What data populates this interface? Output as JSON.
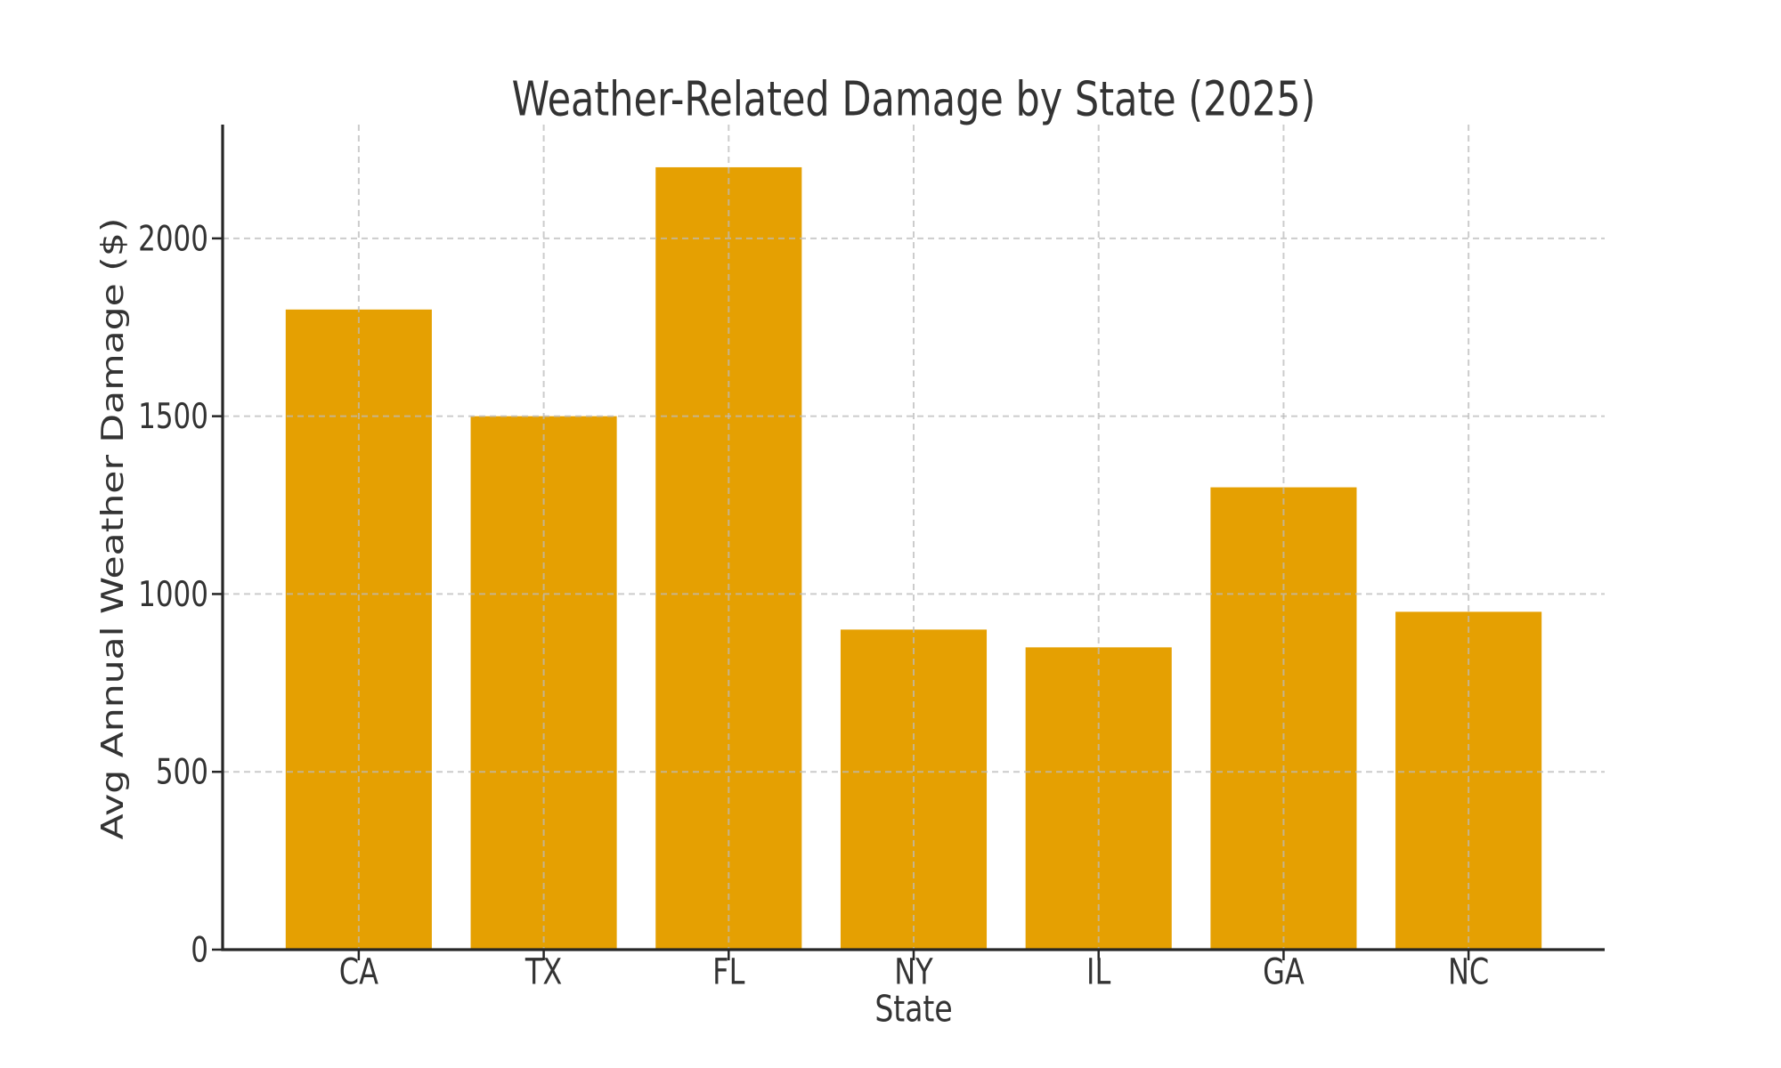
{
  "chart_data": {
    "type": "bar",
    "title": "Weather-Related Damage by State (2025)",
    "xlabel": "State",
    "ylabel": "Avg Annual Weather Damage ($)",
    "categories": [
      "CA",
      "TX",
      "FL",
      "NY",
      "IL",
      "GA",
      "NC"
    ],
    "values": [
      1800,
      1500,
      2200,
      900,
      850,
      1300,
      950
    ],
    "ylim": [
      0,
      2320
    ],
    "yticks": [
      0,
      500,
      1000,
      1500,
      2000
    ],
    "legend_position": "none",
    "grid": "dashed gridlines on both axes, drawn above bars",
    "colors": {
      "bar": "#E5A002",
      "text": "#333333",
      "spine": "#262626",
      "grid": "#bbbbbb"
    }
  }
}
